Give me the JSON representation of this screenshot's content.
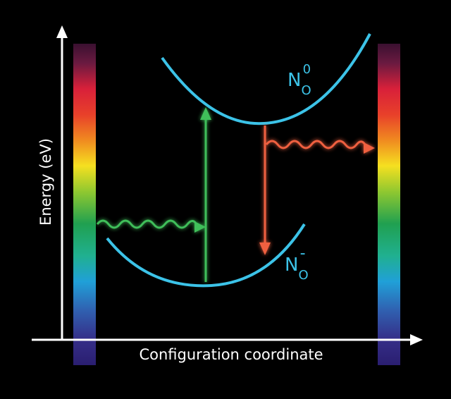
{
  "axes": {
    "y_label": "Energy (eV)",
    "x_label": "Configuration coordinate"
  },
  "states": [
    {
      "symbol": "N",
      "subscript": "O",
      "superscript": "0"
    },
    {
      "symbol": "N",
      "subscript": "O",
      "superscript": "-"
    }
  ]
}
